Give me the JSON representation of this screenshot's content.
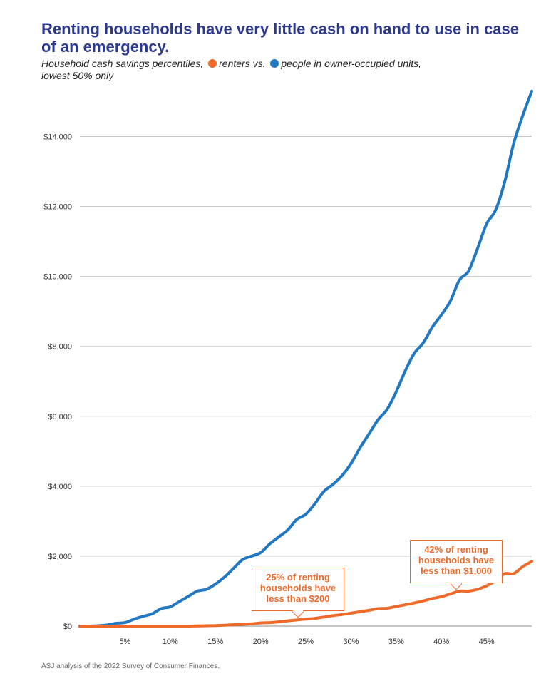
{
  "chart_data": {
    "type": "line",
    "title": "Renting households have very little cash on hand to use in case of an emergency.",
    "subtitle": {
      "lead": "Household cash savings percentiles,",
      "renters_label": "renters vs.",
      "owners_label": "people in owner-occupied units,",
      "tail": "lowest 50% only"
    },
    "xlabel": "",
    "ylabel": "",
    "xlim": [
      0,
      50
    ],
    "ylim": [
      0,
      15500
    ],
    "x_ticks": [
      {
        "value": 5,
        "label": "5%"
      },
      {
        "value": 10,
        "label": "10%"
      },
      {
        "value": 15,
        "label": "15%"
      },
      {
        "value": 20,
        "label": "20%"
      },
      {
        "value": 25,
        "label": "25%"
      },
      {
        "value": 30,
        "label": "30%"
      },
      {
        "value": 35,
        "label": "35%"
      },
      {
        "value": 40,
        "label": "40%"
      },
      {
        "value": 45,
        "label": "45%"
      }
    ],
    "y_ticks": [
      {
        "value": 0,
        "label": "$0"
      },
      {
        "value": 2000,
        "label": "$2,000"
      },
      {
        "value": 4000,
        "label": "$4,000"
      },
      {
        "value": 6000,
        "label": "$6,000"
      },
      {
        "value": 8000,
        "label": "$8,000"
      },
      {
        "value": 10000,
        "label": "$10,000"
      },
      {
        "value": 12000,
        "label": "$12,000"
      },
      {
        "value": 14000,
        "label": "$14,000"
      }
    ],
    "x": [
      0,
      1,
      2,
      3,
      4,
      5,
      6,
      7,
      8,
      9,
      10,
      11,
      12,
      13,
      14,
      15,
      16,
      17,
      18,
      19,
      20,
      21,
      22,
      23,
      24,
      25,
      26,
      27,
      28,
      29,
      30,
      31,
      32,
      33,
      34,
      35,
      36,
      37,
      38,
      39,
      40,
      41,
      42,
      43,
      44,
      45,
      46,
      47,
      48,
      49,
      50
    ],
    "series": [
      {
        "name": "people in owner-occupied units",
        "color": "#1f78c1",
        "values": [
          0,
          0,
          10,
          30,
          80,
          100,
          200,
          280,
          350,
          500,
          550,
          700,
          850,
          1000,
          1050,
          1200,
          1400,
          1650,
          1900,
          2000,
          2100,
          2350,
          2550,
          2750,
          3050,
          3200,
          3500,
          3850,
          4050,
          4300,
          4650,
          5100,
          5500,
          5900,
          6200,
          6700,
          7300,
          7800,
          8100,
          8550,
          8900,
          9300,
          9900,
          10150,
          10800,
          11500,
          11900,
          12700,
          13800,
          14600,
          15300
        ]
      },
      {
        "name": "renters",
        "color": "#ee6a2b",
        "values": [
          0,
          0,
          0,
          0,
          0,
          0,
          0,
          0,
          0,
          0,
          0,
          0,
          0,
          5,
          10,
          15,
          25,
          40,
          50,
          65,
          90,
          100,
          120,
          150,
          175,
          200,
          220,
          260,
          300,
          330,
          370,
          410,
          450,
          500,
          510,
          560,
          610,
          660,
          720,
          790,
          840,
          920,
          1000,
          1000,
          1050,
          1150,
          1300,
          1500,
          1500,
          1700,
          1850
        ]
      }
    ],
    "annotations": [
      {
        "text": "25% of renting households have less than $200",
        "x": 25,
        "y": 200
      },
      {
        "text": "42% of renting households have less than $1,000",
        "x": 42,
        "y": 1000
      }
    ],
    "grid": true,
    "legend": "inline in subtitle"
  },
  "source": "ASJ analysis of the 2022 Survey of Consumer Finances."
}
